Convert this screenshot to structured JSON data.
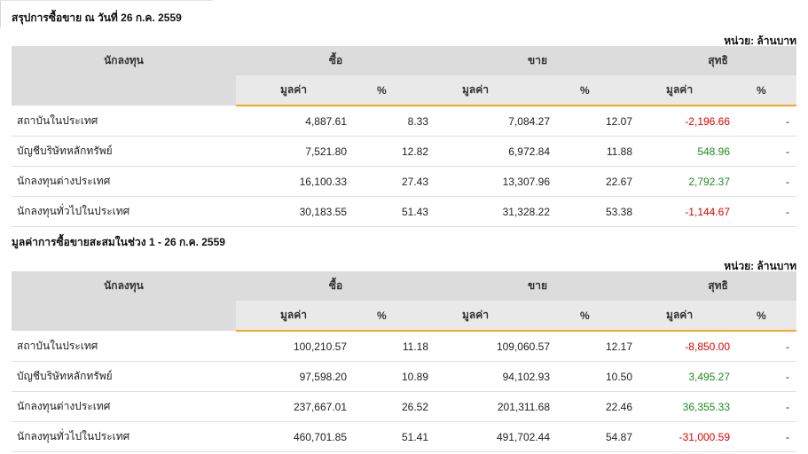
{
  "colors": {
    "negative": "#e00000",
    "positive": "#1e8a1e",
    "header_underline": "#f5a623",
    "header_bg": "#dcdcdc"
  },
  "tables": [
    {
      "title": "สรุปการซื้อขาย ณ วันที่ 26 ก.ค. 2559",
      "unit": "หน่วย: ล้านบาท",
      "headers": {
        "investor": "นักลงทุน",
        "buy": "ซื้อ",
        "sell": "ขาย",
        "net": "สุทธิ",
        "value": "มูลค่า",
        "pct": "%"
      },
      "rows": [
        {
          "name": "สถาบันในประเทศ",
          "buy_value": "4,887.61",
          "buy_pct": "8.33",
          "sell_value": "7,084.27",
          "sell_pct": "12.07",
          "net_value": "-2,196.66",
          "net_sign": "neg",
          "net_pct": "-"
        },
        {
          "name": "บัญชีบริษัทหลักทรัพย์",
          "buy_value": "7,521.80",
          "buy_pct": "12.82",
          "sell_value": "6,972.84",
          "sell_pct": "11.88",
          "net_value": "548.96",
          "net_sign": "pos",
          "net_pct": "-"
        },
        {
          "name": "นักลงทุนต่างประเทศ",
          "buy_value": "16,100.33",
          "buy_pct": "27.43",
          "sell_value": "13,307.96",
          "sell_pct": "22.67",
          "net_value": "2,792.37",
          "net_sign": "pos",
          "net_pct": "-"
        },
        {
          "name": "นักลงทุนทั่วไปในประเทศ",
          "buy_value": "30,183.55",
          "buy_pct": "51.43",
          "sell_value": "31,328.22",
          "sell_pct": "53.38",
          "net_value": "-1,144.67",
          "net_sign": "neg",
          "net_pct": "-"
        }
      ]
    },
    {
      "title": "มูลค่าการซื้อขายสะสมในช่วง 1 - 26 ก.ค. 2559",
      "unit": "หน่วย: ล้านบาท",
      "headers": {
        "investor": "นักลงทุน",
        "buy": "ซื้อ",
        "sell": "ขาย",
        "net": "สุทธิ",
        "value": "มูลค่า",
        "pct": "%"
      },
      "rows": [
        {
          "name": "สถาบันในประเทศ",
          "buy_value": "100,210.57",
          "buy_pct": "11.18",
          "sell_value": "109,060.57",
          "sell_pct": "12.17",
          "net_value": "-8,850.00",
          "net_sign": "neg",
          "net_pct": "-"
        },
        {
          "name": "บัญชีบริษัทหลักทรัพย์",
          "buy_value": "97,598.20",
          "buy_pct": "10.89",
          "sell_value": "94,102.93",
          "sell_pct": "10.50",
          "net_value": "3,495.27",
          "net_sign": "pos",
          "net_pct": "-"
        },
        {
          "name": "นักลงทุนต่างประเทศ",
          "buy_value": "237,667.01",
          "buy_pct": "26.52",
          "sell_value": "201,311.68",
          "sell_pct": "22.46",
          "net_value": "36,355.33",
          "net_sign": "pos",
          "net_pct": "-"
        },
        {
          "name": "นักลงทุนทั่วไปในประเทศ",
          "buy_value": "460,701.85",
          "buy_pct": "51.41",
          "sell_value": "491,702.44",
          "sell_pct": "54.87",
          "net_value": "-31,000.59",
          "net_sign": "neg",
          "net_pct": "-"
        }
      ]
    }
  ]
}
